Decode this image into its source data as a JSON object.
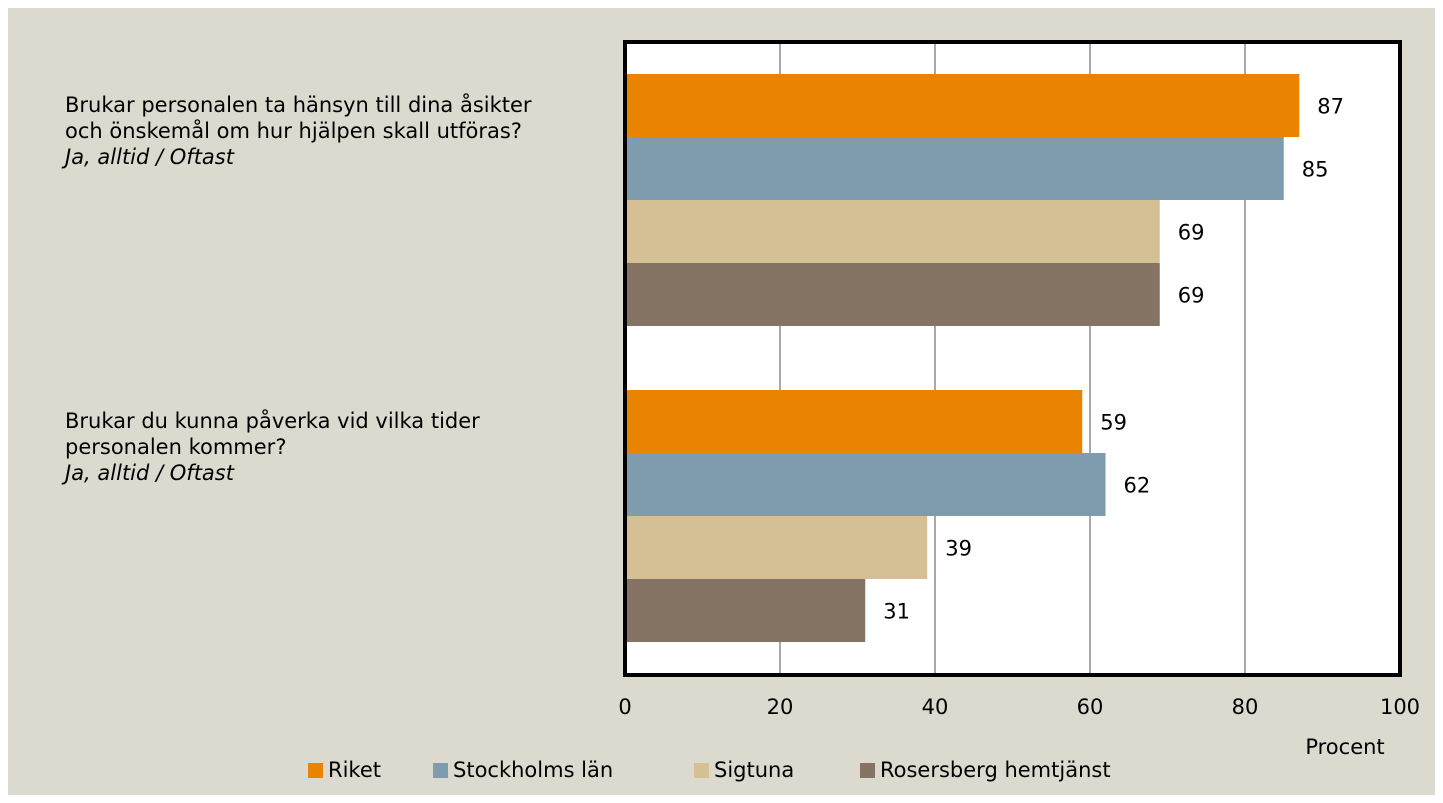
{
  "chart_data": {
    "type": "bar",
    "orientation": "horizontal",
    "categories": [
      "Brukar personalen ta hänsyn till dina åsikter och önskemål om hur hjälpen skall utföras?",
      "Brukar du kunna påverka vid vilka tider personalen kommer?"
    ],
    "category_notes": [
      "Ja, alltid / Oftast",
      "Ja, alltid / Oftast"
    ],
    "series": [
      {
        "name": "Riket",
        "color": "#e98300",
        "values": [
          87,
          59
        ]
      },
      {
        "name": "Stockholms län",
        "color": "#7f9cae",
        "values": [
          85,
          62
        ]
      },
      {
        "name": "Sigtuna",
        "color": "#d4c094",
        "values": [
          69,
          39
        ]
      },
      {
        "name": "Rosersberg hemtjänst",
        "color": "#857463",
        "values": [
          69,
          31
        ]
      }
    ],
    "xlabel": "Procent",
    "xlim": [
      0,
      100
    ],
    "xticks": [
      0,
      20,
      40,
      60,
      80,
      100
    ],
    "grid": true,
    "legend": "bottom"
  }
}
